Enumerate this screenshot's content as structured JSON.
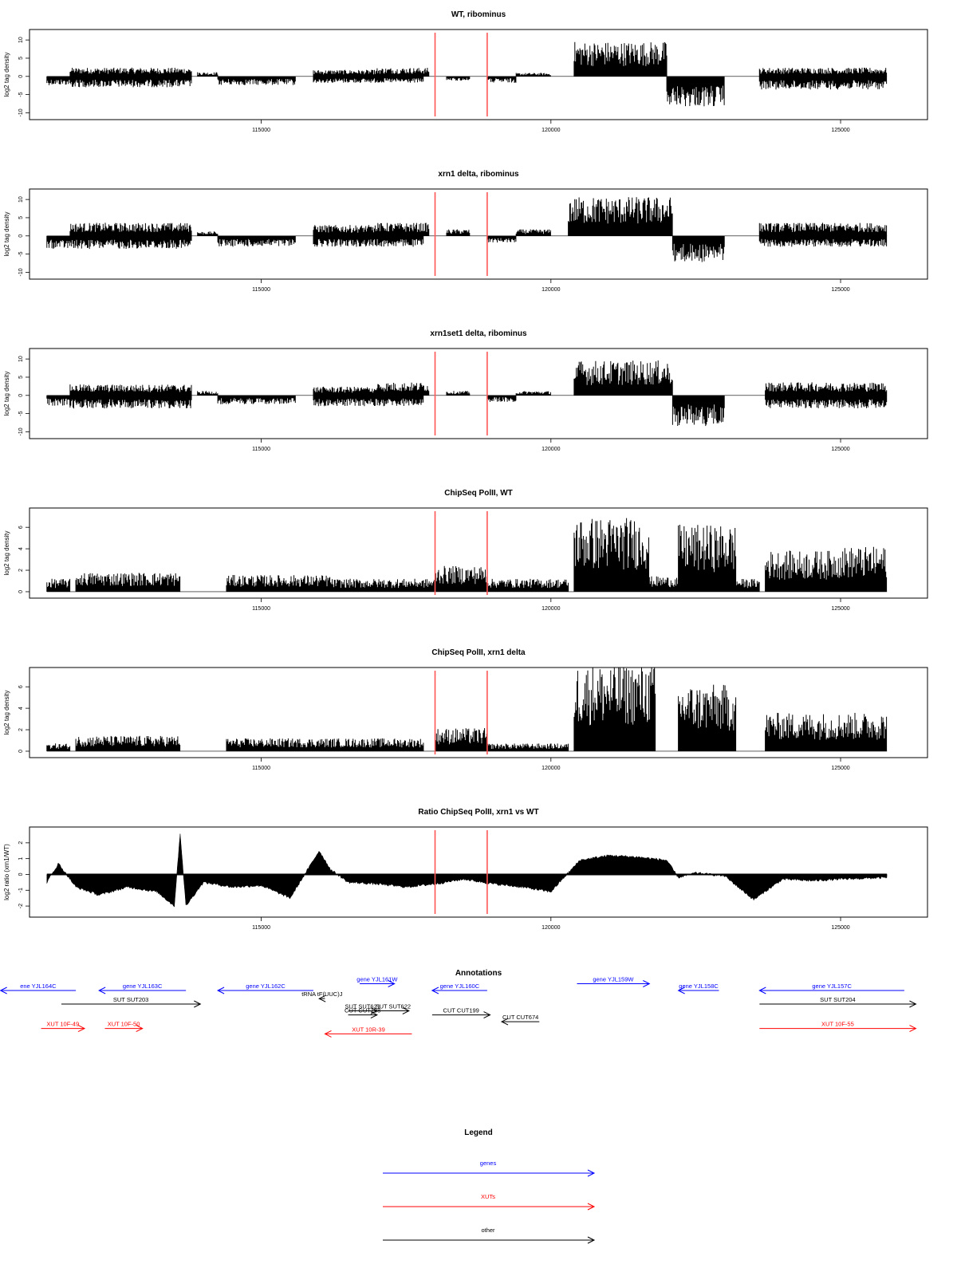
{
  "chart_data": [
    {
      "type": "bar",
      "title": "WT, ribominus",
      "ylabel": "log2 tag density",
      "ylim": [
        -11,
        12
      ],
      "yticks": [
        "-10",
        "-5",
        "0",
        "5",
        "10"
      ],
      "xlim": [
        111000,
        126500
      ],
      "xticks": [
        "115000",
        "120000",
        "125000"
      ],
      "markers": [
        118000,
        118900
      ],
      "series": [
        {
          "values": [
            {
              "x": [
                111300,
                111700
              ],
              "y": -2
            },
            {
              "x": [
                111700,
                113800
              ],
              "y": 2
            },
            {
              "x": [
                111700,
                113800
              ],
              "y": -2.5
            },
            {
              "x": [
                113900,
                114250
              ],
              "y": 1
            },
            {
              "x": [
                114250,
                115600
              ],
              "y": -2
            },
            {
              "x": [
                115900,
                117000
              ],
              "y": 1.5
            },
            {
              "x": [
                115900,
                117800
              ],
              "y": -1.5
            },
            {
              "x": [
                117000,
                117900
              ],
              "y": 2
            },
            {
              "x": [
                118200,
                118600
              ],
              "y": -1
            },
            {
              "x": [
                118900,
                119400
              ],
              "y": -1.5
            },
            {
              "x": [
                119400,
                120000
              ],
              "y": 0.8
            },
            {
              "x": [
                120400,
                122000
              ],
              "y": 8
            },
            {
              "x": [
                122000,
                123000
              ],
              "y": -7
            },
            {
              "x": [
                123600,
                125800
              ],
              "y": 2
            },
            {
              "x": [
                123600,
                125800
              ],
              "y": -3
            }
          ]
        }
      ]
    },
    {
      "type": "bar",
      "title": "xrn1 delta, ribominus",
      "ylabel": "log2 tag density",
      "ylim": [
        -11,
        12
      ],
      "yticks": [
        "-10",
        "-5",
        "0",
        "5",
        "10"
      ],
      "xlim": [
        111000,
        126500
      ],
      "xticks": [
        "115000",
        "120000",
        "125000"
      ],
      "markers": [
        118000,
        118900
      ],
      "series": [
        {
          "values": [
            {
              "x": [
                111300,
                111700
              ],
              "y": -3
            },
            {
              "x": [
                111700,
                113800
              ],
              "y": 3
            },
            {
              "x": [
                111700,
                113800
              ],
              "y": -3
            },
            {
              "x": [
                113900,
                114250
              ],
              "y": 1
            },
            {
              "x": [
                114250,
                115600
              ],
              "y": -2.5
            },
            {
              "x": [
                115900,
                117000
              ],
              "y": 2.5
            },
            {
              "x": [
                115900,
                117800
              ],
              "y": -2.5
            },
            {
              "x": [
                117000,
                117900
              ],
              "y": 3
            },
            {
              "x": [
                118200,
                118600
              ],
              "y": 1.5
            },
            {
              "x": [
                118900,
                119400
              ],
              "y": -1.5
            },
            {
              "x": [
                119400,
                120000
              ],
              "y": 1.5
            },
            {
              "x": [
                120300,
                122100
              ],
              "y": 9
            },
            {
              "x": [
                122100,
                123000
              ],
              "y": -6
            },
            {
              "x": [
                123600,
                125800
              ],
              "y": 3
            },
            {
              "x": [
                123600,
                125800
              ],
              "y": -2.5
            }
          ]
        }
      ]
    },
    {
      "type": "bar",
      "title": "xrn1set1 delta, ribominus",
      "ylabel": "log2 tag density",
      "ylim": [
        -11,
        12
      ],
      "yticks": [
        "-10",
        "-5",
        "0",
        "5",
        "10"
      ],
      "xlim": [
        111000,
        126500
      ],
      "xticks": [
        "115000",
        "120000",
        "125000"
      ],
      "markers": [
        118000,
        118900
      ],
      "series": [
        {
          "values": [
            {
              "x": [
                111300,
                111700
              ],
              "y": -2.5
            },
            {
              "x": [
                111700,
                113800
              ],
              "y": 2.5
            },
            {
              "x": [
                111700,
                113800
              ],
              "y": -3
            },
            {
              "x": [
                113900,
                114250
              ],
              "y": 1
            },
            {
              "x": [
                114250,
                115600
              ],
              "y": -2
            },
            {
              "x": [
                115900,
                117000
              ],
              "y": 2
            },
            {
              "x": [
                115900,
                117800
              ],
              "y": -2.5
            },
            {
              "x": [
                117000,
                117900
              ],
              "y": 3
            },
            {
              "x": [
                118200,
                118600
              ],
              "y": 1
            },
            {
              "x": [
                118900,
                119400
              ],
              "y": -1.5
            },
            {
              "x": [
                119400,
                120000
              ],
              "y": 1
            },
            {
              "x": [
                120400,
                122100
              ],
              "y": 8
            },
            {
              "x": [
                122100,
                123000
              ],
              "y": -7
            },
            {
              "x": [
                123700,
                125800
              ],
              "y": 3
            },
            {
              "x": [
                123700,
                125800
              ],
              "y": -3
            }
          ]
        }
      ]
    },
    {
      "type": "bar",
      "title": "ChipSeq PolII, WT",
      "ylabel": "log2 tag density",
      "ylim": [
        -0.3,
        7.5
      ],
      "yticks": [
        "0",
        "2",
        "4",
        "6"
      ],
      "xlim": [
        111000,
        126500
      ],
      "xticks": [
        "115000",
        "120000",
        "125000"
      ],
      "markers": [
        118000,
        118900
      ],
      "series": [
        {
          "values": [
            {
              "x": [
                111300,
                111700
              ],
              "y": 1
            },
            {
              "x": [
                111800,
                113600
              ],
              "y": 1.5
            },
            {
              "x": [
                114400,
                116200
              ],
              "y": 1.3
            },
            {
              "x": [
                116200,
                118000
              ],
              "y": 1
            },
            {
              "x": [
                118000,
                118900
              ],
              "y": 2
            },
            {
              "x": [
                118900,
                120300
              ],
              "y": 1
            },
            {
              "x": [
                120400,
                121700
              ],
              "y": 5.8
            },
            {
              "x": [
                121700,
                122200
              ],
              "y": 1.2
            },
            {
              "x": [
                122200,
                123200
              ],
              "y": 5.2
            },
            {
              "x": [
                123200,
                123600
              ],
              "y": 1
            },
            {
              "x": [
                123700,
                124900
              ],
              "y": 3.2
            },
            {
              "x": [
                124900,
                125800
              ],
              "y": 3.5
            }
          ]
        }
      ]
    },
    {
      "type": "bar",
      "title": "ChipSeq PolII, xrn1 delta",
      "ylabel": "log2 tag density",
      "ylim": [
        -0.3,
        7.5
      ],
      "yticks": [
        "0",
        "2",
        "4",
        "6"
      ],
      "xlim": [
        111000,
        126500
      ],
      "xticks": [
        "115000",
        "120000",
        "125000"
      ],
      "markers": [
        118000,
        118900
      ],
      "series": [
        {
          "values": [
            {
              "x": [
                111300,
                111700
              ],
              "y": 0.6
            },
            {
              "x": [
                111800,
                113600
              ],
              "y": 1.2
            },
            {
              "x": [
                114400,
                116200
              ],
              "y": 1
            },
            {
              "x": [
                116200,
                117800
              ],
              "y": 1
            },
            {
              "x": [
                118000,
                118900
              ],
              "y": 1.8
            },
            {
              "x": [
                118900,
                120300
              ],
              "y": 0.6
            },
            {
              "x": [
                120400,
                121800
              ],
              "y": 6.8
            },
            {
              "x": [
                122200,
                123200
              ],
              "y": 5.2
            },
            {
              "x": [
                123700,
                124900
              ],
              "y": 3
            },
            {
              "x": [
                124900,
                125800
              ],
              "y": 3
            }
          ]
        }
      ]
    },
    {
      "type": "area",
      "title": "Ratio ChipSeq PolII, xrn1 vs WT",
      "ylabel": "log2 ratio (xrn1/WT)",
      "ylim": [
        -2.5,
        2.8
      ],
      "yticks": [
        "-2",
        "-1",
        "0",
        "1",
        "2"
      ],
      "xlim": [
        111000,
        126500
      ],
      "xticks": [
        "115000",
        "120000",
        "125000"
      ],
      "markers": [
        118000,
        118900
      ],
      "series": [
        {
          "x": [
            111300,
            111500,
            111800,
            112200,
            112700,
            113200,
            113500,
            113600,
            113700,
            114000,
            114500,
            115000,
            115500,
            116000,
            116200,
            116500,
            117000,
            117500,
            118000,
            118500,
            119000,
            119500,
            120000,
            120500,
            121000,
            121500,
            122000,
            122200,
            122500,
            123000,
            123500,
            124000,
            124500,
            125000,
            125800
          ],
          "y": [
            -0.5,
            0.7,
            -0.8,
            -1.3,
            -0.8,
            -1.1,
            -2.0,
            2.6,
            -2.0,
            -0.5,
            -0.8,
            -0.7,
            -1.5,
            1.5,
            0.3,
            -0.5,
            -0.6,
            -0.8,
            -0.6,
            -0.3,
            -0.6,
            -0.8,
            -1.1,
            0.9,
            1.2,
            1.1,
            0.9,
            -0.2,
            0.1,
            -0.1,
            -1.6,
            -0.3,
            -0.4,
            -0.3,
            -0.2
          ]
        }
      ]
    }
  ],
  "annotations": {
    "title": "Annotations",
    "items": [
      {
        "label": "ene YJL164C",
        "x1": 110500,
        "x2": 111800,
        "dir": "left",
        "color": "#0000ff",
        "row": 0
      },
      {
        "label": "gene YJL163C",
        "x1": 112200,
        "x2": 113700,
        "dir": "left",
        "color": "#0000ff",
        "row": 0
      },
      {
        "label": "gene YJL162C",
        "x1": 114250,
        "x2": 115900,
        "dir": "left",
        "color": "#0000ff",
        "row": 0
      },
      {
        "label": "gene YJL161W",
        "x1": 116700,
        "x2": 117300,
        "dir": "right",
        "color": "#0000ff",
        "row": -0.5
      },
      {
        "label": "gene YJL160C",
        "x1": 117950,
        "x2": 118900,
        "dir": "left",
        "color": "#0000ff",
        "row": 0
      },
      {
        "label": "gene YJL159W",
        "x1": 120450,
        "x2": 121700,
        "dir": "right",
        "color": "#0000ff",
        "row": -0.5
      },
      {
        "label": "gene YJL158C",
        "x1": 122200,
        "x2": 122900,
        "dir": "left",
        "color": "#0000ff",
        "row": 0
      },
      {
        "label": "gene YJL157C",
        "x1": 123600,
        "x2": 126100,
        "dir": "left",
        "color": "#0000ff",
        "row": 0
      },
      {
        "label": "SUT SUT203",
        "x1": 111550,
        "x2": 113950,
        "dir": "right",
        "color": "#000000",
        "row": 1
      },
      {
        "label": "tRNA tF(UUC)J",
        "x1": 116000,
        "x2": 116100,
        "dir": "left",
        "color": "#000000",
        "row": 0.6
      },
      {
        "label": "SUT SUT621",
        "x1": 116500,
        "x2": 117000,
        "dir": "right",
        "color": "#000000",
        "row": 1.5
      },
      {
        "label": "SUT SUT622",
        "x1": 117000,
        "x2": 117550,
        "dir": "right",
        "color": "#000000",
        "row": 1.5
      },
      {
        "label": "CUT CUT198",
        "x1": 116500,
        "x2": 117000,
        "dir": "right",
        "color": "#000000",
        "row": 1.8
      },
      {
        "label": "CUT CUT199",
        "x1": 117950,
        "x2": 118950,
        "dir": "right",
        "color": "#000000",
        "row": 1.8
      },
      {
        "label": "CUT CUT674",
        "x1": 119150,
        "x2": 119800,
        "dir": "left",
        "color": "#000000",
        "row": 2.3
      },
      {
        "label": "SUT SUT204",
        "x1": 123600,
        "x2": 126300,
        "dir": "right",
        "color": "#000000",
        "row": 1
      },
      {
        "label": "XUT 10F-49",
        "x1": 111200,
        "x2": 111950,
        "dir": "right",
        "color": "#ff0000",
        "row": 2.8
      },
      {
        "label": "XUT 10F-50",
        "x1": 112300,
        "x2": 112950,
        "dir": "right",
        "color": "#ff0000",
        "row": 2.8
      },
      {
        "label": "XUT 10R-39",
        "x1": 116100,
        "x2": 117600,
        "dir": "left",
        "color": "#ff0000",
        "row": 3.2
      },
      {
        "label": "XUT 10F-55",
        "x1": 123600,
        "x2": 126300,
        "dir": "right",
        "color": "#ff0000",
        "row": 2.8
      }
    ]
  },
  "legend": {
    "title": "Legend",
    "items": [
      {
        "label": "genes",
        "color": "#0000ff"
      },
      {
        "label": "XUTs",
        "color": "#ff0000"
      },
      {
        "label": "other",
        "color": "#000000"
      }
    ]
  },
  "marker_color": "#ff5555"
}
